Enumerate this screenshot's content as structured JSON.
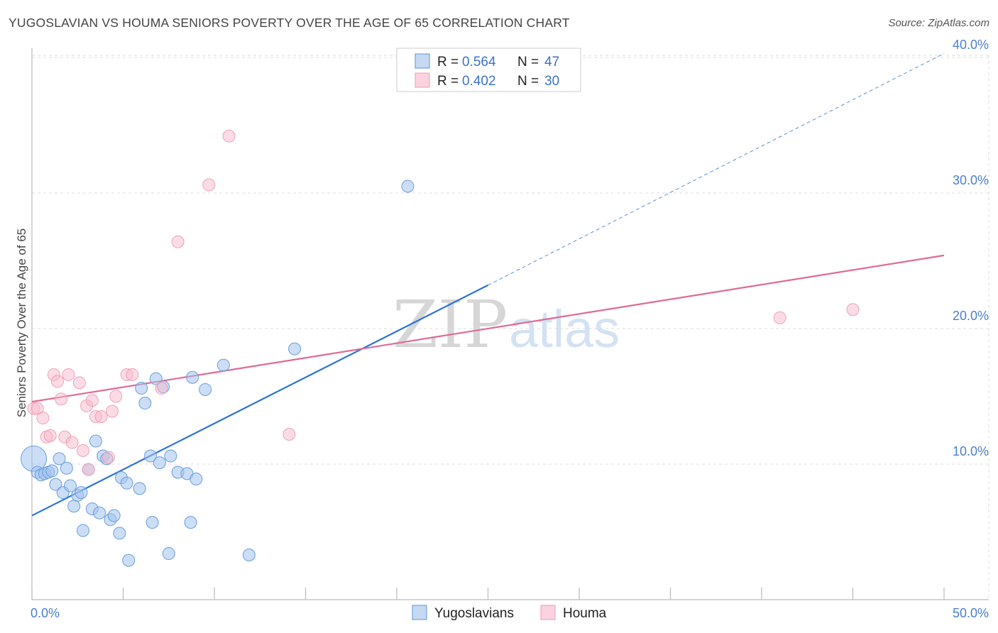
{
  "header": {
    "title": "YUGOSLAVIAN VS HOUMA SENIORS POVERTY OVER THE AGE OF 65 CORRELATION CHART",
    "source": "Source: ZipAtlas.com"
  },
  "watermark": {
    "zip": "ZIP",
    "atlas": "atlas"
  },
  "legend_top": {
    "rows": [
      {
        "r_label": "R = ",
        "r_value": "0.564",
        "n_label": "N = ",
        "n_value": "47",
        "color": "#5b93dc"
      },
      {
        "r_label": "R = ",
        "r_value": "0.402",
        "n_label": "N = ",
        "n_value": "30",
        "color": "#f29ab3"
      }
    ]
  },
  "legend_bottom": {
    "items": [
      {
        "label": "Yugoslavians",
        "color": "#5b93dc"
      },
      {
        "label": "Houma",
        "color": "#f29ab3"
      }
    ]
  },
  "chart_data": {
    "type": "scatter",
    "title": "YUGOSLAVIAN VS HOUMA SENIORS POVERTY OVER THE AGE OF 65 CORRELATION CHART",
    "xlabel": "",
    "ylabel": "Seniors Poverty Over the Age of 65",
    "xlim": [
      0,
      50
    ],
    "ylim": [
      0,
      40
    ],
    "y_ticks": [
      10,
      20,
      30,
      40
    ],
    "y_tick_labels": [
      "10.0%",
      "20.0%",
      "30.0%",
      "40.0%"
    ],
    "x_tick_labels": [
      "0.0%",
      "50.0%"
    ],
    "grid": true,
    "series": [
      {
        "name": "Yugoslavians",
        "color": "#5b93dc",
        "r": 0.564,
        "n": 47,
        "trend": {
          "x0": 0,
          "y0": 6.2,
          "x1": 25,
          "y1": 23.2,
          "dashed_to_x": 50,
          "dashed_to_y": 40.3
        },
        "points": [
          [
            0.1,
            10.4
          ],
          [
            0.3,
            9.4
          ],
          [
            0.5,
            9.2
          ],
          [
            0.7,
            9.3
          ],
          [
            0.9,
            9.4
          ],
          [
            1.1,
            9.5
          ],
          [
            1.3,
            8.5
          ],
          [
            1.5,
            10.4
          ],
          [
            1.7,
            7.9
          ],
          [
            1.9,
            9.7
          ],
          [
            2.1,
            8.4
          ],
          [
            2.3,
            6.9
          ],
          [
            2.5,
            7.7
          ],
          [
            2.7,
            7.9
          ],
          [
            2.8,
            5.1
          ],
          [
            3.1,
            9.6
          ],
          [
            3.3,
            6.7
          ],
          [
            3.5,
            11.7
          ],
          [
            3.7,
            6.4
          ],
          [
            3.9,
            10.6
          ],
          [
            4.1,
            10.4
          ],
          [
            4.3,
            5.9
          ],
          [
            4.5,
            6.2
          ],
          [
            4.8,
            4.9
          ],
          [
            4.9,
            9.0
          ],
          [
            5.2,
            8.6
          ],
          [
            5.3,
            2.9
          ],
          [
            5.9,
            8.2
          ],
          [
            6.0,
            15.6
          ],
          [
            6.2,
            14.5
          ],
          [
            6.5,
            10.6
          ],
          [
            6.6,
            5.7
          ],
          [
            6.8,
            16.3
          ],
          [
            7.0,
            10.1
          ],
          [
            7.2,
            15.7
          ],
          [
            7.5,
            3.4
          ],
          [
            7.6,
            10.6
          ],
          [
            8.0,
            9.4
          ],
          [
            8.5,
            9.3
          ],
          [
            8.7,
            5.7
          ],
          [
            8.8,
            16.4
          ],
          [
            9.0,
            8.9
          ],
          [
            9.5,
            15.5
          ],
          [
            10.5,
            17.3
          ],
          [
            11.9,
            3.3
          ],
          [
            14.4,
            18.5
          ],
          [
            20.6,
            30.5
          ]
        ]
      },
      {
        "name": "Houma",
        "color": "#f29ab3",
        "r": 0.402,
        "n": 30,
        "trend": {
          "x0": 0,
          "y0": 14.6,
          "x1": 50,
          "y1": 25.4
        },
        "points": [
          [
            0.1,
            14.1
          ],
          [
            0.3,
            14.1
          ],
          [
            0.6,
            13.4
          ],
          [
            0.8,
            12.0
          ],
          [
            1.0,
            12.1
          ],
          [
            1.2,
            16.6
          ],
          [
            1.4,
            16.1
          ],
          [
            1.6,
            14.8
          ],
          [
            1.8,
            12.0
          ],
          [
            2.0,
            16.6
          ],
          [
            2.2,
            11.6
          ],
          [
            2.6,
            16.0
          ],
          [
            2.8,
            11.0
          ],
          [
            3.0,
            14.3
          ],
          [
            3.1,
            9.6
          ],
          [
            3.3,
            14.7
          ],
          [
            3.5,
            13.5
          ],
          [
            3.8,
            13.5
          ],
          [
            4.2,
            10.5
          ],
          [
            4.4,
            13.9
          ],
          [
            4.6,
            15.0
          ],
          [
            5.2,
            16.6
          ],
          [
            5.5,
            16.6
          ],
          [
            7.1,
            15.6
          ],
          [
            8.0,
            26.4
          ],
          [
            9.7,
            30.6
          ],
          [
            10.8,
            34.2
          ],
          [
            14.1,
            12.2
          ],
          [
            41.0,
            20.8
          ],
          [
            45.0,
            21.4
          ]
        ]
      }
    ]
  }
}
